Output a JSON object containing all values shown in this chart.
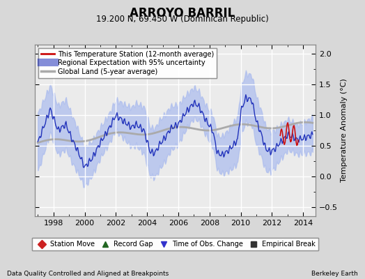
{
  "title": "ARROYO BARRIL",
  "subtitle": "19.200 N, 69.450 W (Dominican Republic)",
  "ylabel": "Temperature Anomaly (°C)",
  "footer_left": "Data Quality Controlled and Aligned at Breakpoints",
  "footer_right": "Berkeley Earth",
  "ylim": [
    -0.65,
    2.15
  ],
  "yticks": [
    -0.5,
    0.0,
    0.5,
    1.0,
    1.5,
    2.0
  ],
  "xlim": [
    1996.8,
    2014.8
  ],
  "xticks": [
    1998,
    2000,
    2002,
    2004,
    2006,
    2008,
    2010,
    2012,
    2014
  ],
  "bg_color": "#d8d8d8",
  "plot_bg_color": "#ebebeb",
  "grid_color": "#ffffff",
  "regional_fill_color": "#aabbee",
  "regional_line_color": "#2233bb",
  "station_line_color": "#cc1111",
  "global_line_color": "#aaaaaa",
  "legend_box_items": [
    {
      "label": "Station Move",
      "color": "#cc2222",
      "marker": "D"
    },
    {
      "label": "Record Gap",
      "color": "#226622",
      "marker": "^"
    },
    {
      "label": "Time of Obs. Change",
      "color": "#3333cc",
      "marker": "v"
    },
    {
      "label": "Empirical Break",
      "color": "#333333",
      "marker": "s"
    }
  ]
}
